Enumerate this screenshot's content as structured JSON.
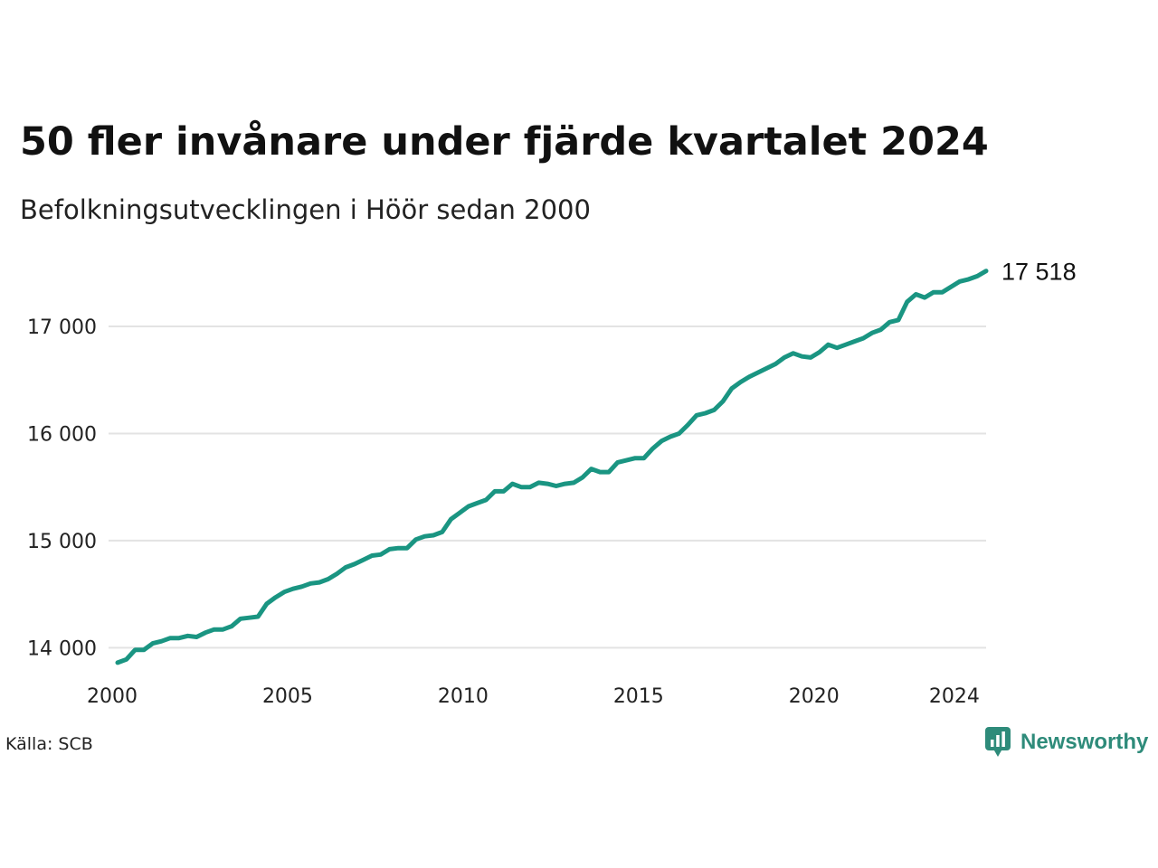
{
  "header": {
    "title": "50 fler invånare under fjärde kvartalet 2024",
    "subtitle": "Befolkningsutvecklingen i Höör sedan 2000"
  },
  "footer": {
    "source": "Källa: SCB",
    "brand": "Newsworthy",
    "brand_icon": "newsworthy-logo-icon"
  },
  "colors": {
    "line": "#1a9582",
    "grid": "#e3e3e3",
    "brand": "#2e8b7a"
  },
  "chart_data": {
    "type": "line",
    "title": "50 fler invånare under fjärde kvartalet 2024",
    "subtitle": "Befolkningsutvecklingen i Höör sedan 2000",
    "xlabel": "",
    "ylabel": "",
    "xlim": [
      2000,
      2024.75
    ],
    "ylim": [
      13800,
      17600
    ],
    "grid": true,
    "x_ticks": [
      2000,
      2005,
      2010,
      2015,
      2020,
      2024
    ],
    "x_tick_labels": [
      "2000",
      "2005",
      "2010",
      "2015",
      "2020",
      "2024"
    ],
    "y_ticks": [
      14000,
      15000,
      16000,
      17000
    ],
    "y_tick_labels": [
      "14 000",
      "15 000",
      "16 000",
      "17 000"
    ],
    "end_label": "17 518",
    "series": [
      {
        "x": [
          2000.0,
          2000.25,
          2000.5,
          2000.75,
          2001.0,
          2001.25,
          2001.5,
          2001.75,
          2002.0,
          2002.25,
          2002.5,
          2002.75,
          2003.0,
          2003.25,
          2003.5,
          2003.75,
          2004.0,
          2004.25,
          2004.5,
          2004.75,
          2005.0,
          2005.25,
          2005.5,
          2005.75,
          2006.0,
          2006.25,
          2006.5,
          2006.75,
          2007.0,
          2007.25,
          2007.5,
          2007.75,
          2008.0,
          2008.25,
          2008.5,
          2008.75,
          2009.0,
          2009.25,
          2009.5,
          2009.75,
          2010.0,
          2010.25,
          2010.5,
          2010.75,
          2011.0,
          2011.25,
          2011.5,
          2011.75,
          2012.0,
          2012.25,
          2012.5,
          2012.75,
          2013.0,
          2013.25,
          2013.5,
          2013.75,
          2014.0,
          2014.25,
          2014.5,
          2014.75,
          2015.0,
          2015.25,
          2015.5,
          2015.75,
          2016.0,
          2016.25,
          2016.5,
          2016.75,
          2017.0,
          2017.25,
          2017.5,
          2017.75,
          2018.0,
          2018.25,
          2018.5,
          2018.75,
          2019.0,
          2019.25,
          2019.5,
          2019.75,
          2020.0,
          2020.25,
          2020.5,
          2020.75,
          2021.0,
          2021.25,
          2021.5,
          2021.75,
          2022.0,
          2022.25,
          2022.5,
          2022.75,
          2023.0,
          2023.25,
          2023.5,
          2023.75,
          2024.0,
          2024.25,
          2024.5,
          2024.75
        ],
        "values": [
          13860,
          13890,
          13980,
          13980,
          14040,
          14060,
          14090,
          14090,
          14110,
          14100,
          14140,
          14170,
          14170,
          14200,
          14270,
          14280,
          14290,
          14410,
          14470,
          14520,
          14550,
          14570,
          14600,
          14610,
          14640,
          14690,
          14750,
          14780,
          14820,
          14860,
          14870,
          14920,
          14930,
          14930,
          15010,
          15040,
          15050,
          15080,
          15200,
          15260,
          15320,
          15350,
          15380,
          15460,
          15460,
          15530,
          15500,
          15500,
          15540,
          15530,
          15510,
          15530,
          15540,
          15590,
          15670,
          15640,
          15640,
          15730,
          15750,
          15770,
          15770,
          15860,
          15930,
          15970,
          16000,
          16080,
          16170,
          16190,
          16220,
          16300,
          16420,
          16480,
          16530,
          16570,
          16610,
          16650,
          16710,
          16750,
          16720,
          16710,
          16760,
          16830,
          16800,
          16830,
          16860,
          16890,
          16940,
          16970,
          17040,
          17060,
          17230,
          17300,
          17270,
          17320,
          17320,
          17370,
          17420,
          17440,
          17470,
          17518
        ]
      }
    ]
  }
}
